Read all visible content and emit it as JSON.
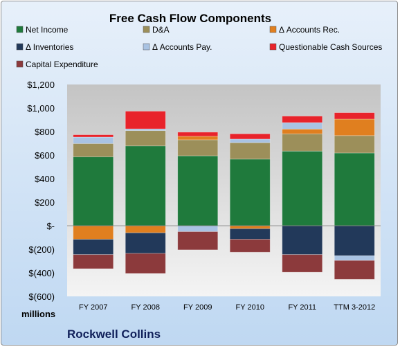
{
  "chart_data": {
    "type": "bar",
    "stacked": true,
    "title": "Free Cash Flow Components",
    "unit_label": "millions",
    "company": "Rockwell Collins",
    "categories": [
      "FY 2007",
      "FY 2008",
      "FY 2009",
      "FY 2010",
      "FY 2011",
      "TTM 3-2012"
    ],
    "ylim": [
      -600,
      1200
    ],
    "yticks": [
      1200,
      1000,
      800,
      600,
      400,
      200,
      0,
      -200,
      -400,
      -600
    ],
    "ytick_labels": [
      "$1,200",
      "$1,000",
      "$800",
      "$600",
      "$400",
      "$200",
      "$-",
      "$(200)",
      "$(400)",
      "$(600)"
    ],
    "grid": false,
    "legend_position": "top",
    "series": [
      {
        "name": "Net Income",
        "color": "#1f7a3c",
        "values": [
          585,
          678,
          594,
          566,
          634,
          618
        ]
      },
      {
        "name": "D&A",
        "color": "#9c8f5a",
        "values": [
          113,
          130,
          136,
          140,
          147,
          148
        ]
      },
      {
        "name": "Δ Accounts Rec.",
        "color": "#e07f1f",
        "values": [
          -115,
          -60,
          30,
          -25,
          40,
          140
        ]
      },
      {
        "name": "Δ Inventories",
        "color": "#22395a",
        "values": [
          -130,
          -175,
          0,
          -90,
          -245,
          -255
        ]
      },
      {
        "name": "Δ Accounts Pay.",
        "color": "#a9c3e3",
        "values": [
          55,
          15,
          -50,
          30,
          55,
          -40
        ]
      },
      {
        "name": "Questionable Cash Sources",
        "color": "#e8232b",
        "values": [
          20,
          150,
          35,
          45,
          55,
          55
        ]
      },
      {
        "name": "Capital Expenditure",
        "color": "#8c3a3c",
        "values": [
          -120,
          -170,
          -155,
          -110,
          -150,
          -160
        ]
      }
    ]
  }
}
